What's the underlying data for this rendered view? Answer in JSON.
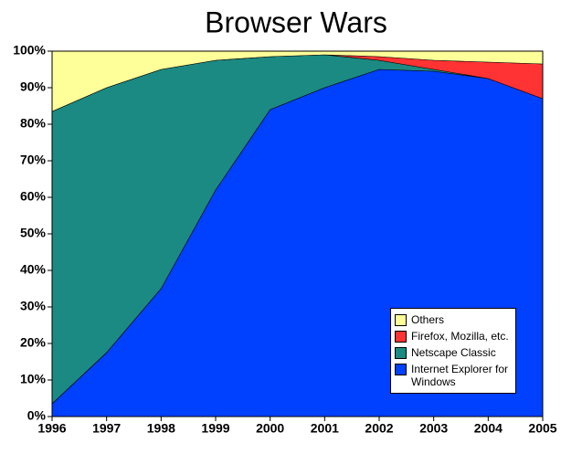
{
  "chart_data": {
    "type": "stacked-area",
    "title": "Browser Wars",
    "categories": [
      "1996",
      "1997",
      "1998",
      "1999",
      "2000",
      "2001",
      "2002",
      "2003",
      "2004",
      "2005"
    ],
    "series": [
      {
        "name": "Internet Explorer for Windows",
        "color": "#0040ff",
        "values": [
          3.5,
          17.5,
          35,
          62,
          84,
          90,
          95,
          94.5,
          92.5,
          87
        ]
      },
      {
        "name": "Netscape Classic",
        "color": "#1b8a82",
        "values": [
          80,
          72.5,
          60,
          35.5,
          14.5,
          9,
          2.5,
          0.5,
          0,
          0
        ]
      },
      {
        "name": "Firefox, Mozilla, etc.",
        "color": "#ff3333",
        "values": [
          0,
          0,
          0,
          0,
          0,
          0,
          1,
          2.5,
          4.5,
          9.5
        ]
      },
      {
        "name": "Others",
        "color": "#ffff99",
        "values": [
          16.5,
          10,
          5,
          2.5,
          1.5,
          1,
          1.5,
          2.5,
          3,
          3.5
        ]
      }
    ],
    "ylim": [
      0,
      100
    ],
    "yticks": [
      {
        "value": 0,
        "label": "0%"
      },
      {
        "value": 10,
        "label": "10%"
      },
      {
        "value": 20,
        "label": "20%"
      },
      {
        "value": 30,
        "label": "30%"
      },
      {
        "value": 40,
        "label": "40%"
      },
      {
        "value": 50,
        "label": "50%"
      },
      {
        "value": 60,
        "label": "60%"
      },
      {
        "value": 70,
        "label": "70%"
      },
      {
        "value": 80,
        "label": "80%"
      },
      {
        "value": 90,
        "label": "90%"
      },
      {
        "value": 100,
        "label": "100%"
      }
    ],
    "legend": "lower right"
  }
}
